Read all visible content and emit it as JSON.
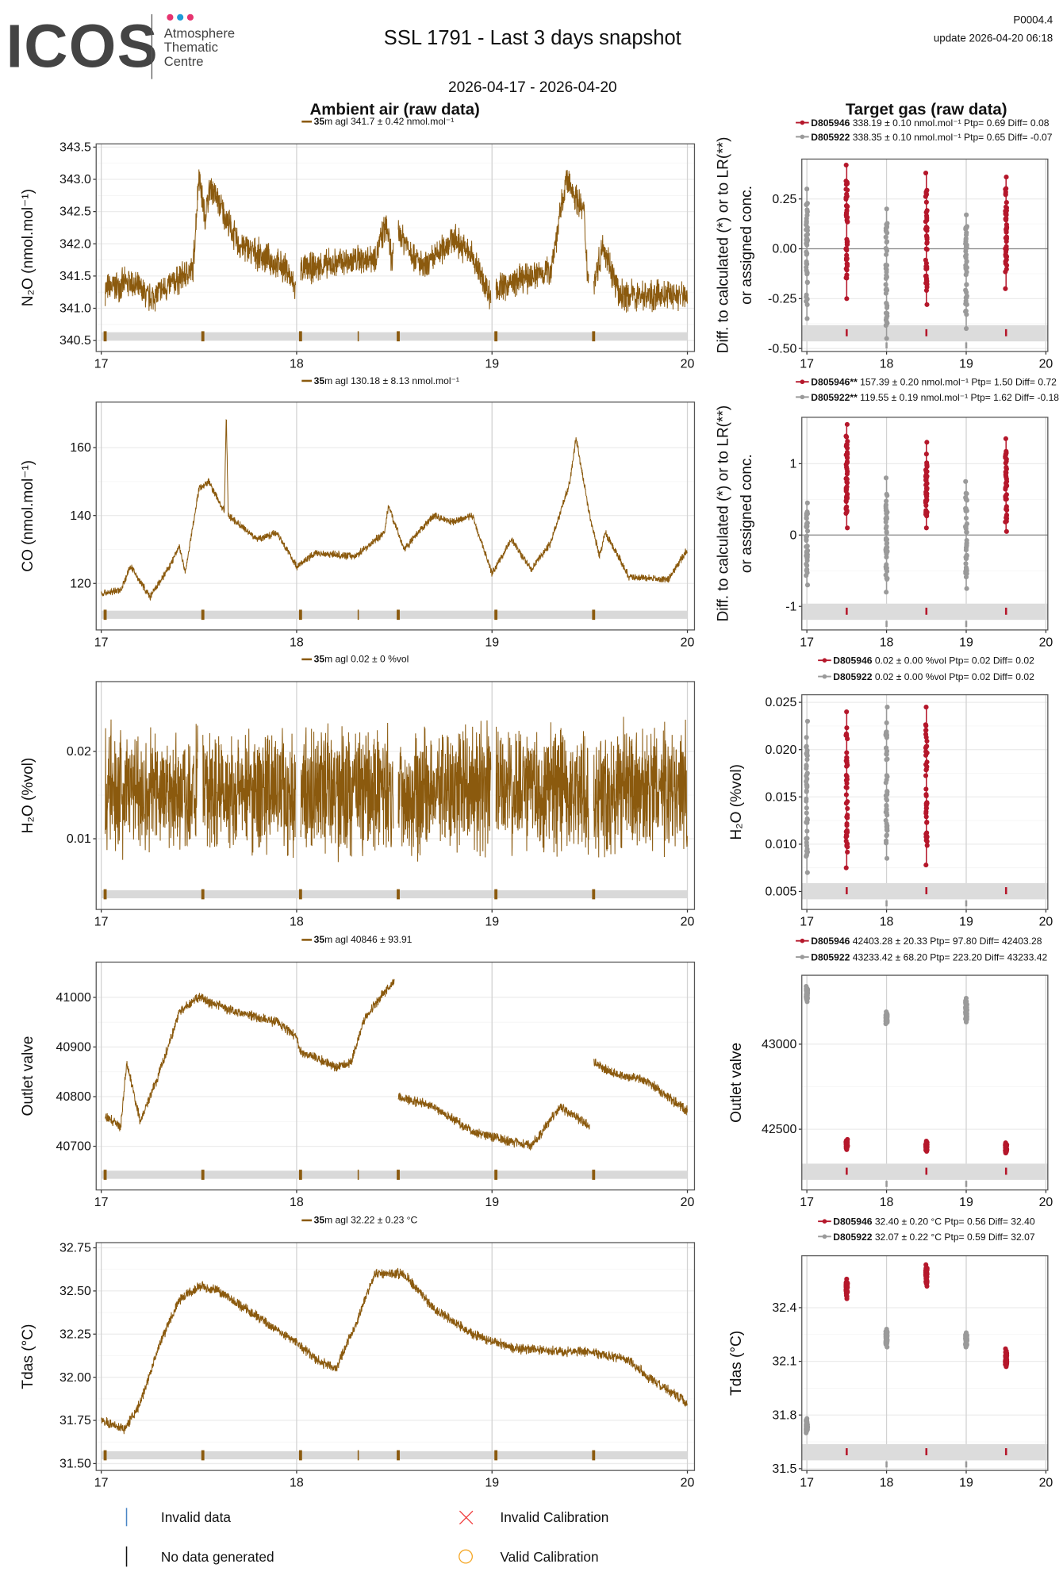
{
  "header": {
    "logo_text": "ICOS",
    "logo_sub": [
      "Atmosphere",
      "Thematic",
      "Centre"
    ],
    "title": "SSL 1791 - Last 3 days snapshot",
    "code": "P0004.4",
    "update": "update  2026-04-20 06:18",
    "date_range": "2026-04-17 - 2026-04-20"
  },
  "sections": {
    "ambient": "Ambient air (raw data)",
    "target": "Target gas (raw data)"
  },
  "colors": {
    "ambient": "#8B5A0E",
    "target_1": "#B5172B",
    "target_2": "#9A9A9A",
    "band": "#D9D9D9",
    "logo_pink": "#E6336F",
    "logo_blue": "#1E9BD7"
  },
  "legend": [
    {
      "label": "Invalid data",
      "symbol": "blue-bar",
      "color": "#4A86C5"
    },
    {
      "label": "No data generated",
      "symbol": "black-bar",
      "color": "#111111"
    },
    {
      "label": "Invalid Calibration",
      "symbol": "red-cross",
      "color": "#F03A3A"
    },
    {
      "label": "Valid Calibration",
      "symbol": "orange-circle",
      "color": "#F5A623"
    }
  ],
  "chart_data": [
    {
      "type": "line",
      "panel": "ambient",
      "ylabel": "N₂O (nmol.mol⁻¹)",
      "ylim": [
        340.33,
        343.55
      ],
      "yticks": [
        "340.5",
        "341.0",
        "341.5",
        "342.0",
        "342.5",
        "343.0",
        "343.5"
      ],
      "xlim": [
        17,
        20
      ],
      "xticks": [
        "17",
        "18",
        "19",
        "20"
      ],
      "grid": true,
      "legend": {
        "bold": "35",
        "text": "m agl 341.7 ± 0.42 nmol.mol⁻¹"
      },
      "noise": 0.28,
      "gaps": [
        [
          17.995,
          18.02
        ],
        [
          18.495,
          18.52
        ],
        [
          18.995,
          19.02
        ],
        [
          19.495,
          19.52
        ]
      ],
      "flags": [
        17.02,
        17.52,
        18.02,
        18.32,
        18.52,
        19.02,
        19.52
      ],
      "trend": [
        [
          17.02,
          341.3
        ],
        [
          17.15,
          341.4
        ],
        [
          17.25,
          341.15
        ],
        [
          17.42,
          341.5
        ],
        [
          17.47,
          341.6
        ],
        [
          17.5,
          343.1
        ],
        [
          17.53,
          342.4
        ],
        [
          17.56,
          342.9
        ],
        [
          17.7,
          342.0
        ],
        [
          17.95,
          341.6
        ],
        [
          17.99,
          341.3
        ],
        [
          18.02,
          341.6
        ],
        [
          18.4,
          341.8
        ],
        [
          18.46,
          342.3
        ],
        [
          18.49,
          341.7
        ],
        [
          18.52,
          342.2
        ],
        [
          18.65,
          341.6
        ],
        [
          18.8,
          342.1
        ],
        [
          18.9,
          341.8
        ],
        [
          18.99,
          341.2
        ],
        [
          19.02,
          341.3
        ],
        [
          19.2,
          341.5
        ],
        [
          19.3,
          341.6
        ],
        [
          19.38,
          343.0
        ],
        [
          19.47,
          342.5
        ],
        [
          19.49,
          341.5
        ],
        [
          19.52,
          341.4
        ],
        [
          19.57,
          342.0
        ],
        [
          19.65,
          341.2
        ],
        [
          20.0,
          341.2
        ]
      ]
    },
    {
      "type": "line",
      "panel": "ambient",
      "ylabel": "CO (nmol.mol⁻¹)",
      "ylim": [
        106.3,
        173.4
      ],
      "yticks": [
        "120",
        "140",
        "160"
      ],
      "xlim": [
        17,
        20
      ],
      "xticks": [
        "17",
        "18",
        "19",
        "20"
      ],
      "grid": true,
      "legend": {
        "bold": "35",
        "text": "m agl 130.18 ± 8.13 nmol.mol⁻¹"
      },
      "noise": 1.3,
      "gaps": [],
      "flags": [
        17.02,
        17.52,
        18.02,
        18.32,
        18.52,
        19.02,
        19.52
      ],
      "trend": [
        [
          17.0,
          117
        ],
        [
          17.1,
          118
        ],
        [
          17.15,
          125
        ],
        [
          17.25,
          116
        ],
        [
          17.35,
          125
        ],
        [
          17.4,
          131
        ],
        [
          17.43,
          123
        ],
        [
          17.5,
          148
        ],
        [
          17.55,
          150
        ],
        [
          17.63,
          141
        ],
        [
          17.64,
          170
        ],
        [
          17.65,
          140
        ],
        [
          17.8,
          133
        ],
        [
          17.9,
          135
        ],
        [
          18.0,
          125
        ],
        [
          18.1,
          129
        ],
        [
          18.3,
          128
        ],
        [
          18.45,
          135
        ],
        [
          18.47,
          143
        ],
        [
          18.55,
          130
        ],
        [
          18.7,
          140
        ],
        [
          18.8,
          138
        ],
        [
          18.9,
          140
        ],
        [
          19.0,
          123
        ],
        [
          19.1,
          133
        ],
        [
          19.2,
          124
        ],
        [
          19.3,
          132
        ],
        [
          19.4,
          150
        ],
        [
          19.43,
          163
        ],
        [
          19.5,
          140
        ],
        [
          19.55,
          128
        ],
        [
          19.58,
          135
        ],
        [
          19.7,
          122
        ],
        [
          19.9,
          121
        ],
        [
          20.0,
          130
        ]
      ]
    },
    {
      "type": "line",
      "panel": "ambient",
      "ylabel": "H₂O (%vol)",
      "ylim": [
        0.0019,
        0.028
      ],
      "yticks": [
        "0.01",
        "0.02"
      ],
      "xlim": [
        17,
        20
      ],
      "xticks": [
        "17",
        "18",
        "19",
        "20"
      ],
      "grid": true,
      "legend": {
        "bold": "35",
        "text": "m agl 0.02 ± 0 %vol"
      },
      "noise": 0.0085,
      "gaps": [
        [
          17.495,
          17.52
        ],
        [
          17.995,
          18.02
        ],
        [
          18.495,
          18.52
        ],
        [
          18.995,
          19.02
        ],
        [
          19.495,
          19.52
        ]
      ],
      "flags": [
        17.02,
        17.52,
        18.02,
        18.52,
        19.02,
        19.52
      ],
      "trend": [
        [
          17.02,
          0.0155
        ],
        [
          20.0,
          0.0155
        ]
      ]
    },
    {
      "type": "line",
      "panel": "ambient",
      "ylabel": "Outlet valve",
      "ylim": [
        40612,
        41071
      ],
      "yticks": [
        "40700",
        "40800",
        "40900",
        "41000"
      ],
      "xlim": [
        17,
        20
      ],
      "xticks": [
        "17",
        "18",
        "19",
        "20"
      ],
      "grid": true,
      "legend": {
        "bold": "35",
        "text": "m agl 40846 ± 93.91"
      },
      "noise": 12,
      "gaps": [
        [
          18.5,
          18.52
        ],
        [
          19.5,
          19.52
        ]
      ],
      "flags": [
        17.02,
        17.52,
        18.02,
        18.32,
        18.52,
        19.02,
        19.52
      ],
      "trend": [
        [
          17.02,
          40760
        ],
        [
          17.1,
          40740
        ],
        [
          17.13,
          40870
        ],
        [
          17.2,
          40750
        ],
        [
          17.3,
          40850
        ],
        [
          17.4,
          40970
        ],
        [
          17.5,
          41000
        ],
        [
          17.55,
          40990
        ],
        [
          17.7,
          40970
        ],
        [
          17.9,
          40950
        ],
        [
          18.0,
          40920
        ],
        [
          18.02,
          40890
        ],
        [
          18.2,
          40860
        ],
        [
          18.28,
          40870
        ],
        [
          18.35,
          40960
        ],
        [
          18.5,
          41035
        ],
        [
          18.52,
          40800
        ],
        [
          18.7,
          40780
        ],
        [
          18.9,
          40730
        ],
        [
          19.0,
          40720
        ],
        [
          19.2,
          40700
        ],
        [
          19.35,
          40780
        ],
        [
          19.5,
          40740
        ],
        [
          19.52,
          40870
        ],
        [
          19.6,
          40850
        ],
        [
          19.8,
          40830
        ],
        [
          20.0,
          40770
        ]
      ]
    },
    {
      "type": "line",
      "panel": "ambient",
      "ylabel": "Tdas (°C)",
      "ylim": [
        31.46,
        32.78
      ],
      "yticks": [
        "31.50",
        "31.75",
        "32.00",
        "32.25",
        "32.50",
        "32.75"
      ],
      "xlim": [
        17,
        20
      ],
      "xticks": [
        "17",
        "18",
        "19",
        "20"
      ],
      "grid": true,
      "legend": {
        "bold": "35",
        "text": "m agl 32.22 ± 0.23 °C"
      },
      "noise": 0.035,
      "gaps": [],
      "flags": [
        17.02,
        17.52,
        18.02,
        18.32,
        18.52,
        19.02,
        19.52
      ],
      "trend": [
        [
          17.0,
          31.75
        ],
        [
          17.12,
          31.7
        ],
        [
          17.13,
          31.72
        ],
        [
          17.2,
          31.85
        ],
        [
          17.3,
          32.2
        ],
        [
          17.4,
          32.45
        ],
        [
          17.5,
          32.53
        ],
        [
          17.6,
          32.5
        ],
        [
          17.8,
          32.35
        ],
        [
          18.0,
          32.2
        ],
        [
          18.1,
          32.1
        ],
        [
          18.2,
          32.05
        ],
        [
          18.3,
          32.3
        ],
        [
          18.4,
          32.6
        ],
        [
          18.55,
          32.6
        ],
        [
          18.7,
          32.4
        ],
        [
          18.9,
          32.25
        ],
        [
          19.1,
          32.17
        ],
        [
          19.3,
          32.15
        ],
        [
          19.5,
          32.15
        ],
        [
          19.7,
          32.1
        ],
        [
          19.8,
          32.0
        ],
        [
          20.0,
          31.85
        ]
      ]
    },
    {
      "type": "scatter",
      "panel": "target",
      "ylabel": [
        "Diff. to calculated (*) or to LR(**)",
        "or assigned conc."
      ],
      "ylim": [
        -0.515,
        0.45
      ],
      "yticks": [
        "-0.50",
        "-0.25",
        "0.00",
        "0.25"
      ],
      "hline": 0,
      "xlim": [
        17,
        20
      ],
      "xticks": [
        "17",
        "18",
        "19",
        "20"
      ],
      "legend": [
        {
          "bold": "D805946",
          "text": " 338.19 ± 0.10 nmol.mol⁻¹ Ptp= 0.69 Diff= 0.08"
        },
        {
          "bold": "D805922",
          "text": " 338.35 ± 0.10 nmol.mol⁻¹ Ptp= 0.65 Diff= -0.07"
        }
      ],
      "series": [
        {
          "name": "D805946",
          "columns": [
            {
              "x": 17.5,
              "min": -0.25,
              "max": 0.42
            },
            {
              "x": 18.5,
              "min": -0.28,
              "max": 0.38
            },
            {
              "x": 19.5,
              "min": -0.2,
              "max": 0.36
            }
          ]
        },
        {
          "name": "D805922",
          "columns": [
            {
              "x": 17.0,
              "min": -0.35,
              "max": 0.3
            },
            {
              "x": 18.0,
              "min": -0.45,
              "max": 0.2
            },
            {
              "x": 19.0,
              "min": -0.4,
              "max": 0.17
            }
          ]
        }
      ]
    },
    {
      "type": "scatter",
      "panel": "target",
      "ylabel": [
        "Diff. to calculated (*) or to LR(**)",
        "or assigned conc."
      ],
      "ylim": [
        -1.33,
        1.65
      ],
      "yticks": [
        "-1",
        "0",
        "1"
      ],
      "hline": 0,
      "xlim": [
        17,
        20
      ],
      "xticks": [
        "17",
        "18",
        "19",
        "20"
      ],
      "legend": [
        {
          "bold": "D805946**",
          "text": " 157.39 ± 0.20 nmol.mol⁻¹ Ptp= 1.50 Diff= 0.72"
        },
        {
          "bold": "D805922**",
          "text": " 119.55 ± 0.19 nmol.mol⁻¹ Ptp= 1.62 Diff= -0.18"
        }
      ],
      "series": [
        {
          "name": "D805946",
          "columns": [
            {
              "x": 17.5,
              "min": 0.1,
              "max": 1.55
            },
            {
              "x": 18.5,
              "min": 0.1,
              "max": 1.3
            },
            {
              "x": 19.5,
              "min": 0.05,
              "max": 1.35
            }
          ]
        },
        {
          "name": "D805922",
          "columns": [
            {
              "x": 17.0,
              "min": -0.7,
              "max": 0.45
            },
            {
              "x": 18.0,
              "min": -0.8,
              "max": 0.8
            },
            {
              "x": 19.0,
              "min": -0.75,
              "max": 0.75
            }
          ]
        }
      ]
    },
    {
      "type": "scatter",
      "panel": "target",
      "ylabel": [
        "H₂O (%vol)"
      ],
      "ylim": [
        0.0031,
        0.0258
      ],
      "yticks": [
        "0.005",
        "0.010",
        "0.015",
        "0.020",
        "0.025"
      ],
      "xlim": [
        17,
        20
      ],
      "xticks": [
        "17",
        "18",
        "19",
        "20"
      ],
      "legend": [
        {
          "bold": "D805946",
          "text": " 0.02 ± 0.00 %vol Ptp= 0.02 Diff= 0.02"
        },
        {
          "bold": "D805922",
          "text": " 0.02 ± 0.00 %vol Ptp= 0.02 Diff= 0.02"
        }
      ],
      "series": [
        {
          "name": "D805946",
          "columns": [
            {
              "x": 17.5,
              "min": 0.0075,
              "max": 0.024
            },
            {
              "x": 18.5,
              "min": 0.0078,
              "max": 0.0245
            }
          ]
        },
        {
          "name": "D805922",
          "columns": [
            {
              "x": 17.0,
              "min": 0.007,
              "max": 0.023
            },
            {
              "x": 18.0,
              "min": 0.0085,
              "max": 0.0245
            }
          ]
        }
      ]
    },
    {
      "type": "scatter",
      "panel": "target",
      "ylabel": [
        "Outlet valve"
      ],
      "ylim": [
        42143,
        43405
      ],
      "yticks": [
        "42500",
        "43000"
      ],
      "xlim": [
        17,
        20
      ],
      "xticks": [
        "17",
        "18",
        "19",
        "20"
      ],
      "legend": [
        {
          "bold": "D805946",
          "text": " 42403.28 ± 20.33  Ptp= 97.80 Diff= 42403.28"
        },
        {
          "bold": "D805922",
          "text": " 43233.42 ± 68.20  Ptp= 223.20 Diff= 43233.42"
        }
      ],
      "series": [
        {
          "name": "D805946",
          "columns": [
            {
              "x": 17.5,
              "min": 42380,
              "max": 42440
            },
            {
              "x": 18.5,
              "min": 42370,
              "max": 42430
            },
            {
              "x": 19.5,
              "min": 42360,
              "max": 42420
            }
          ]
        },
        {
          "name": "D805922",
          "columns": [
            {
              "x": 17.0,
              "min": 43250,
              "max": 43340
            },
            {
              "x": 18.0,
              "min": 43120,
              "max": 43190
            },
            {
              "x": 19.0,
              "min": 43130,
              "max": 43270
            }
          ]
        }
      ]
    },
    {
      "type": "scatter",
      "panel": "target",
      "ylabel": [
        "Tdas (°C)"
      ],
      "ylim": [
        31.49,
        32.69
      ],
      "yticks": [
        "31.5",
        "31.8",
        "32.1",
        "32.4"
      ],
      "xlim": [
        17,
        20
      ],
      "xticks": [
        "17",
        "18",
        "19",
        "20"
      ],
      "legend": [
        {
          "bold": "D805946",
          "text": " 32.40 ± 0.20 °C Ptp= 0.56 Diff= 32.40"
        },
        {
          "bold": "D805922",
          "text": " 32.07 ± 0.22 °C Ptp= 0.59 Diff= 32.07"
        }
      ],
      "series": [
        {
          "name": "D805946",
          "columns": [
            {
              "x": 17.5,
              "min": 32.45,
              "max": 32.56
            },
            {
              "x": 18.5,
              "min": 32.52,
              "max": 32.64
            },
            {
              "x": 19.5,
              "min": 32.07,
              "max": 32.17
            }
          ]
        },
        {
          "name": "D805922",
          "columns": [
            {
              "x": 17.0,
              "min": 31.7,
              "max": 31.78
            },
            {
              "x": 18.0,
              "min": 32.18,
              "max": 32.28
            },
            {
              "x": 19.0,
              "min": 32.18,
              "max": 32.26
            }
          ]
        }
      ]
    }
  ]
}
